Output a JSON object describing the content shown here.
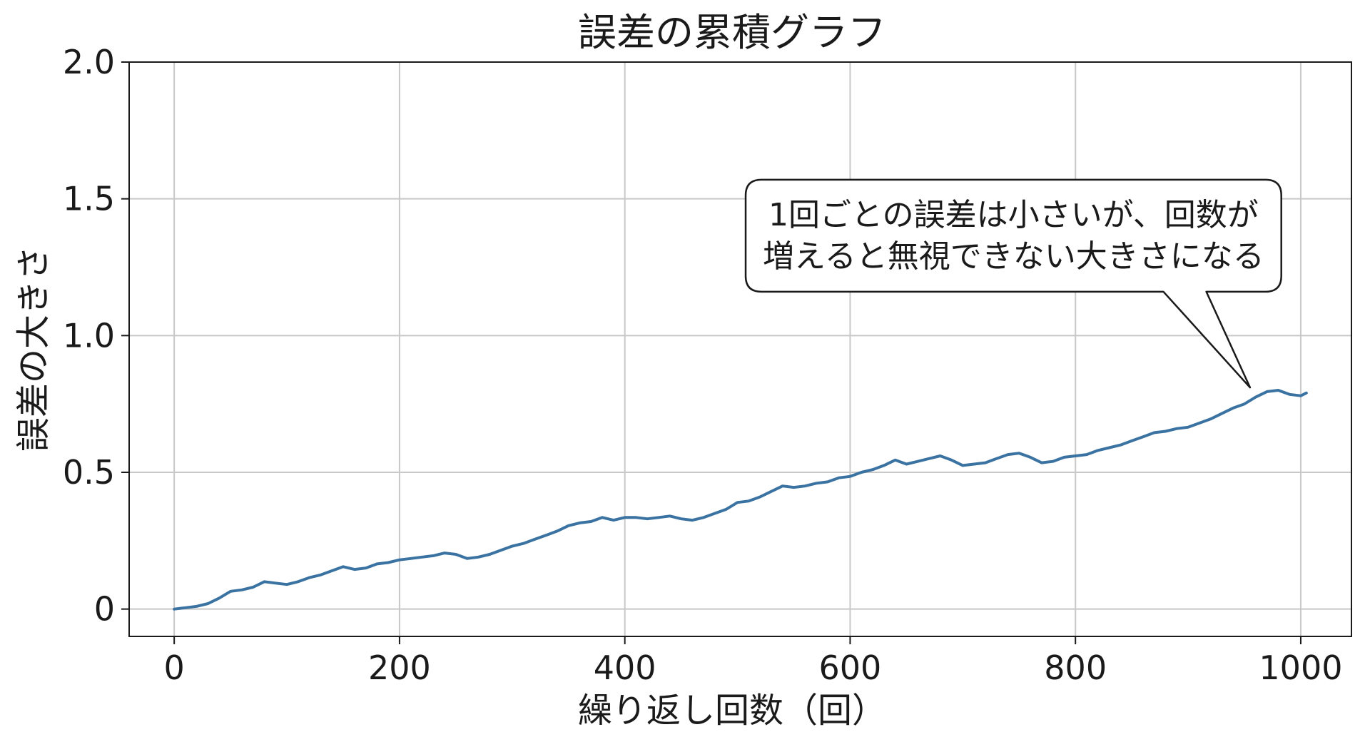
{
  "chart_data": {
    "type": "line",
    "title": "誤差の累積グラフ",
    "xlabel": "繰り返し回数（回）",
    "ylabel": "誤差の大きさ",
    "xlim": [
      -40,
      1045
    ],
    "ylim": [
      -0.1,
      2.0
    ],
    "xticks": [
      {
        "value": 0,
        "label": "0"
      },
      {
        "value": 200,
        "label": "200"
      },
      {
        "value": 400,
        "label": "400"
      },
      {
        "value": 600,
        "label": "600"
      },
      {
        "value": 800,
        "label": "800"
      },
      {
        "value": 1000,
        "label": "1000"
      }
    ],
    "yticks": [
      {
        "value": 0,
        "label": "0"
      },
      {
        "value": 0.5,
        "label": "0.5"
      },
      {
        "value": 1.0,
        "label": "1.0"
      },
      {
        "value": 1.5,
        "label": "1.5"
      },
      {
        "value": 2.0,
        "label": "2.0"
      }
    ],
    "grid": true,
    "line_color": "#3a72a1",
    "series": [
      {
        "values": [
          [
            0,
            0.0
          ],
          [
            10,
            0.005
          ],
          [
            20,
            0.01
          ],
          [
            30,
            0.02
          ],
          [
            40,
            0.04
          ],
          [
            50,
            0.065
          ],
          [
            60,
            0.07
          ],
          [
            70,
            0.08
          ],
          [
            80,
            0.1
          ],
          [
            90,
            0.095
          ],
          [
            100,
            0.09
          ],
          [
            110,
            0.1
          ],
          [
            120,
            0.115
          ],
          [
            130,
            0.125
          ],
          [
            140,
            0.14
          ],
          [
            150,
            0.155
          ],
          [
            160,
            0.145
          ],
          [
            170,
            0.15
          ],
          [
            180,
            0.165
          ],
          [
            190,
            0.17
          ],
          [
            200,
            0.18
          ],
          [
            210,
            0.185
          ],
          [
            220,
            0.19
          ],
          [
            230,
            0.195
          ],
          [
            240,
            0.205
          ],
          [
            250,
            0.2
          ],
          [
            260,
            0.185
          ],
          [
            270,
            0.19
          ],
          [
            280,
            0.2
          ],
          [
            290,
            0.215
          ],
          [
            300,
            0.23
          ],
          [
            310,
            0.24
          ],
          [
            320,
            0.255
          ],
          [
            330,
            0.27
          ],
          [
            340,
            0.285
          ],
          [
            350,
            0.305
          ],
          [
            360,
            0.315
          ],
          [
            370,
            0.32
          ],
          [
            380,
            0.335
          ],
          [
            390,
            0.325
          ],
          [
            400,
            0.335
          ],
          [
            410,
            0.335
          ],
          [
            420,
            0.33
          ],
          [
            430,
            0.335
          ],
          [
            440,
            0.34
          ],
          [
            450,
            0.33
          ],
          [
            460,
            0.325
          ],
          [
            470,
            0.335
          ],
          [
            480,
            0.35
          ],
          [
            490,
            0.365
          ],
          [
            500,
            0.39
          ],
          [
            510,
            0.395
          ],
          [
            520,
            0.41
          ],
          [
            530,
            0.43
          ],
          [
            540,
            0.45
          ],
          [
            550,
            0.445
          ],
          [
            560,
            0.45
          ],
          [
            570,
            0.46
          ],
          [
            580,
            0.465
          ],
          [
            590,
            0.48
          ],
          [
            600,
            0.485
          ],
          [
            610,
            0.5
          ],
          [
            620,
            0.51
          ],
          [
            630,
            0.525
          ],
          [
            640,
            0.545
          ],
          [
            650,
            0.53
          ],
          [
            660,
            0.54
          ],
          [
            670,
            0.55
          ],
          [
            680,
            0.56
          ],
          [
            690,
            0.545
          ],
          [
            700,
            0.525
          ],
          [
            710,
            0.53
          ],
          [
            720,
            0.535
          ],
          [
            730,
            0.55
          ],
          [
            740,
            0.565
          ],
          [
            750,
            0.57
          ],
          [
            760,
            0.555
          ],
          [
            770,
            0.535
          ],
          [
            780,
            0.54
          ],
          [
            790,
            0.555
          ],
          [
            800,
            0.56
          ],
          [
            810,
            0.565
          ],
          [
            820,
            0.58
          ],
          [
            830,
            0.59
          ],
          [
            840,
            0.6
          ],
          [
            850,
            0.615
          ],
          [
            860,
            0.63
          ],
          [
            870,
            0.645
          ],
          [
            880,
            0.65
          ],
          [
            890,
            0.66
          ],
          [
            900,
            0.665
          ],
          [
            910,
            0.68
          ],
          [
            920,
            0.695
          ],
          [
            930,
            0.715
          ],
          [
            940,
            0.735
          ],
          [
            950,
            0.75
          ],
          [
            960,
            0.775
          ],
          [
            970,
            0.795
          ],
          [
            980,
            0.8
          ],
          [
            990,
            0.785
          ],
          [
            1000,
            0.78
          ],
          [
            1005,
            0.79
          ]
        ]
      }
    ],
    "annotations": [
      {
        "lines": [
          "1回ごとの誤差は小さいが、回数が",
          "増えると無視できない大きさになる"
        ],
        "points_to": [
          955,
          0.81
        ],
        "text_center": [
          745,
          1.365
        ]
      }
    ]
  }
}
